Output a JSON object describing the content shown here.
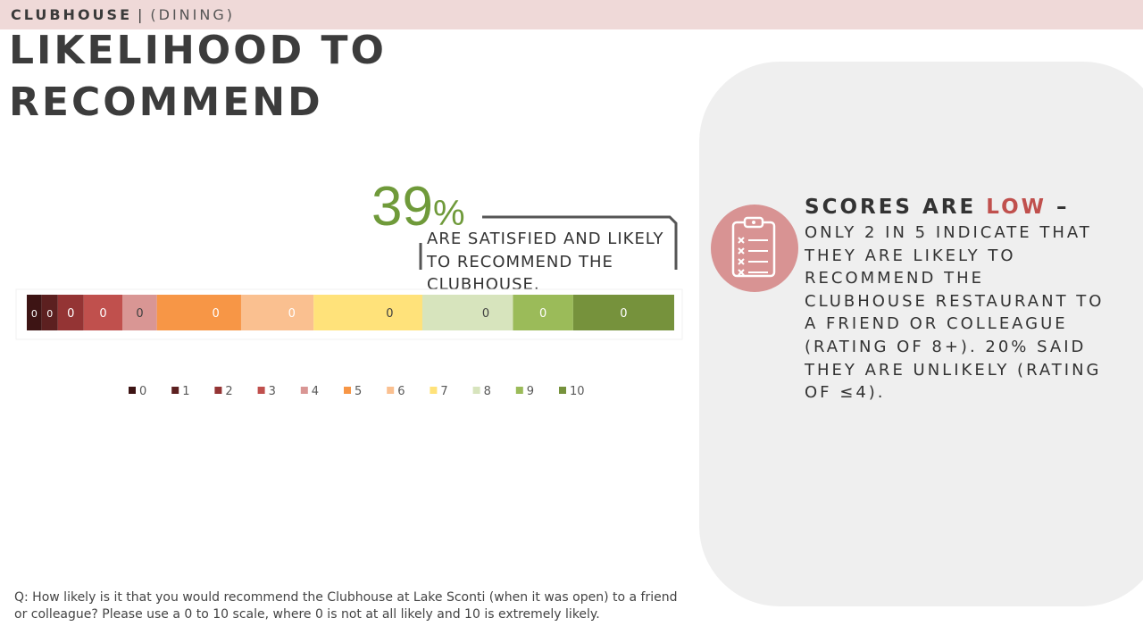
{
  "header": {
    "section": "CLUBHOUSE",
    "separator": "|",
    "subsection": "(DINING)"
  },
  "title": {
    "line1": "LIKELIHOOD TO",
    "line2": "RECOMMEND"
  },
  "callout": {
    "number": "39",
    "unit": "%",
    "text": "ARE SATISFIED AND LIKELY TO RECOMMEND THE CLUBHOUSE."
  },
  "insight": {
    "head_prefix": "SCORES ARE ",
    "head_emphasis": "LOW",
    "head_suffix": " –",
    "body": "ONLY 2 IN 5 INDICATE THAT THEY ARE LIKELY TO RECOMMEND THE CLUBHOUSE RESTAURANT TO A FRIEND OR COLLEAGUE (RATING OF 8+). 20% SAID THEY ARE UNLIKELY (RATING OF ≤4).",
    "icon": "clipboard-checklist-icon",
    "accent_color": "#c0504d",
    "circle_color": "#d89393"
  },
  "footnote": "Q: How likely is it that you would recommend the Clubhouse at Lake Sconti (when it was open) to a friend or colleague? Please use a 0 to 10 scale, where 0 is not at all likely and 10 is extremely likely.",
  "chart_data": {
    "type": "bar",
    "orientation": "horizontal-stacked-100",
    "categories": [
      "0",
      "1",
      "2",
      "3",
      "4",
      "5",
      "6",
      "7",
      "8",
      "9",
      "10"
    ],
    "shares_percent": [
      2.3,
      2.5,
      4.0,
      6.0,
      5.3,
      13.0,
      11.2,
      16.8,
      14.0,
      9.3,
      15.6
    ],
    "data_labels": [
      "0",
      "0",
      "0",
      "0",
      "0",
      "0",
      "0",
      "0",
      "0",
      "0",
      "0"
    ],
    "colors": [
      "#3d1414",
      "#5c2020",
      "#943434",
      "#c0504d",
      "#d99694",
      "#f79646",
      "#fac090",
      "#ffe27a",
      "#d7e4bd",
      "#9bbb59",
      "#76923c"
    ],
    "legend_position": "bottom",
    "grid": false
  }
}
